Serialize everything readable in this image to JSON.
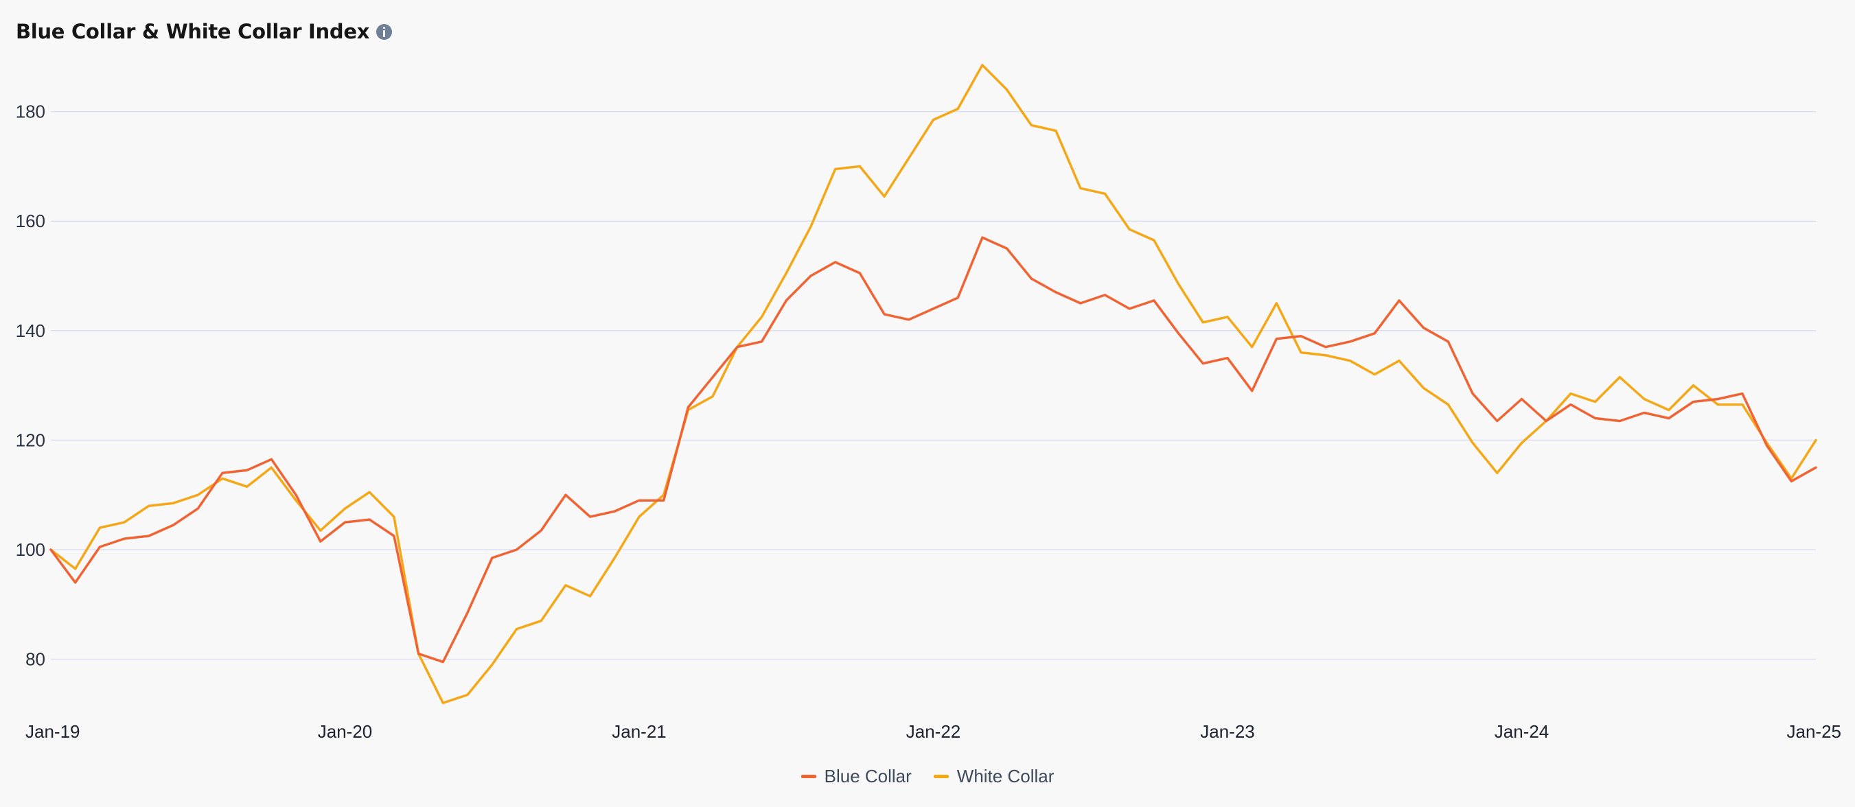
{
  "header": {
    "title": "Blue Collar & White Collar Index",
    "info_icon": "info-icon"
  },
  "colors": {
    "blue_collar": "#f06332",
    "white_collar": "#f5a817",
    "grid": "#dcdff2",
    "background": "#f8f8f8"
  },
  "chart_data": {
    "type": "line",
    "title": "Blue Collar & White Collar Index",
    "xlabel": "",
    "ylabel": "",
    "x_start": "Jan-19",
    "x_end": "Jan-25",
    "x_ticks": [
      "Jan-19",
      "Jan-20",
      "Jan-21",
      "Jan-22",
      "Jan-23",
      "Jan-24",
      "Jan-25"
    ],
    "y_ticks": [
      80,
      100,
      120,
      140,
      160,
      180
    ],
    "ylim": [
      72,
      188
    ],
    "grid": true,
    "legend_position": "bottom-center",
    "series": [
      {
        "name": "Blue Collar",
        "color": "#f06332",
        "values": [
          100,
          94,
          100.5,
          102,
          102.5,
          104.5,
          107.5,
          114,
          114.5,
          116.5,
          110,
          101.5,
          105,
          105.5,
          102.5,
          81,
          79.5,
          88.5,
          98.5,
          100,
          103.5,
          110,
          106,
          107,
          109,
          109,
          126,
          131.5,
          137,
          138,
          145.5,
          150,
          152.5,
          150.5,
          143,
          142,
          144,
          146,
          157,
          155,
          149.5,
          147,
          145,
          146.5,
          144,
          145.5,
          139.5,
          134,
          135,
          129,
          138.5,
          139,
          137,
          138,
          139.5,
          145.5,
          140.5,
          138,
          128.5,
          123.5,
          127.5,
          123.5,
          126.5,
          124,
          123.5,
          125,
          124,
          127,
          127.5,
          128.5,
          119,
          112.5,
          115
        ]
      },
      {
        "name": "White Collar",
        "color": "#f5a817",
        "values": [
          100,
          96.5,
          104,
          105,
          108,
          108.5,
          110,
          113,
          111.5,
          115,
          109,
          103.5,
          107.5,
          110.5,
          106,
          81,
          72,
          73.5,
          79,
          85.5,
          87,
          93.5,
          91.5,
          98.5,
          106,
          110,
          125.5,
          128,
          137,
          142.5,
          150.5,
          159,
          169.5,
          170,
          164.5,
          171.5,
          178.5,
          180.5,
          188.5,
          184,
          177.5,
          176.5,
          166,
          165,
          158.5,
          156.5,
          148.5,
          141.5,
          142.5,
          137,
          145,
          136,
          135.5,
          134.5,
          132,
          134.5,
          129.5,
          126.5,
          119.5,
          114,
          119.5,
          123.5,
          128.5,
          127,
          131.5,
          127.5,
          125.5,
          130,
          126.5,
          126.5,
          119.5,
          113,
          120
        ]
      }
    ]
  }
}
